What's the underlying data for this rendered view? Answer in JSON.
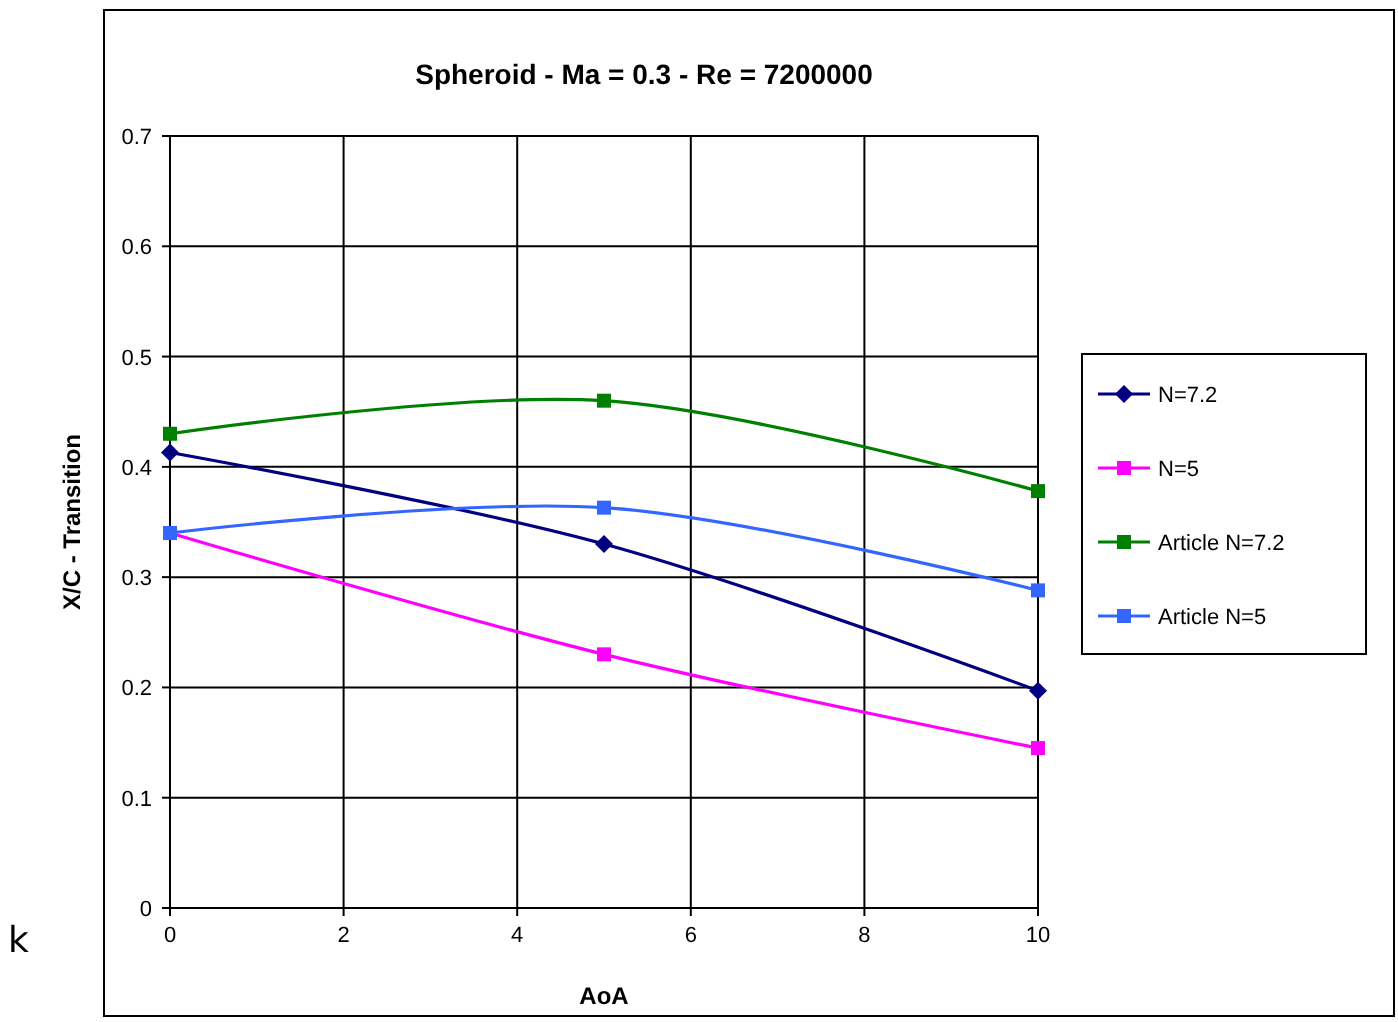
{
  "chart_data": {
    "type": "line",
    "title": "Spheroid  -  Ma = 0.3  -  Re = 7200000",
    "xlabel": "AoA",
    "ylabel": "X/C - Transition",
    "x": [
      0,
      5,
      10
    ],
    "xlim": [
      0,
      10
    ],
    "xticks": [
      0,
      2,
      4,
      6,
      8,
      10
    ],
    "ylim": [
      0,
      0.7
    ],
    "yticks": [
      0,
      0.1,
      0.2,
      0.3,
      0.4,
      0.5,
      0.6,
      0.7
    ],
    "grid": true,
    "legend": "right",
    "annotations": [
      "k"
    ],
    "series": [
      {
        "name": "N=7.2",
        "color": "#000080",
        "marker": "diamond",
        "values": [
          0.413,
          0.33,
          0.197
        ]
      },
      {
        "name": "N=5",
        "color": "#ff00ff",
        "marker": "square",
        "values": [
          0.34,
          0.23,
          0.145
        ]
      },
      {
        "name": "Article  N=7.2",
        "color": "#008000",
        "marker": "square",
        "values": [
          0.43,
          0.46,
          0.378
        ]
      },
      {
        "name": "Article  N=5",
        "color": "#3366ff",
        "marker": "square",
        "values": [
          0.34,
          0.363,
          0.288
        ]
      }
    ]
  }
}
